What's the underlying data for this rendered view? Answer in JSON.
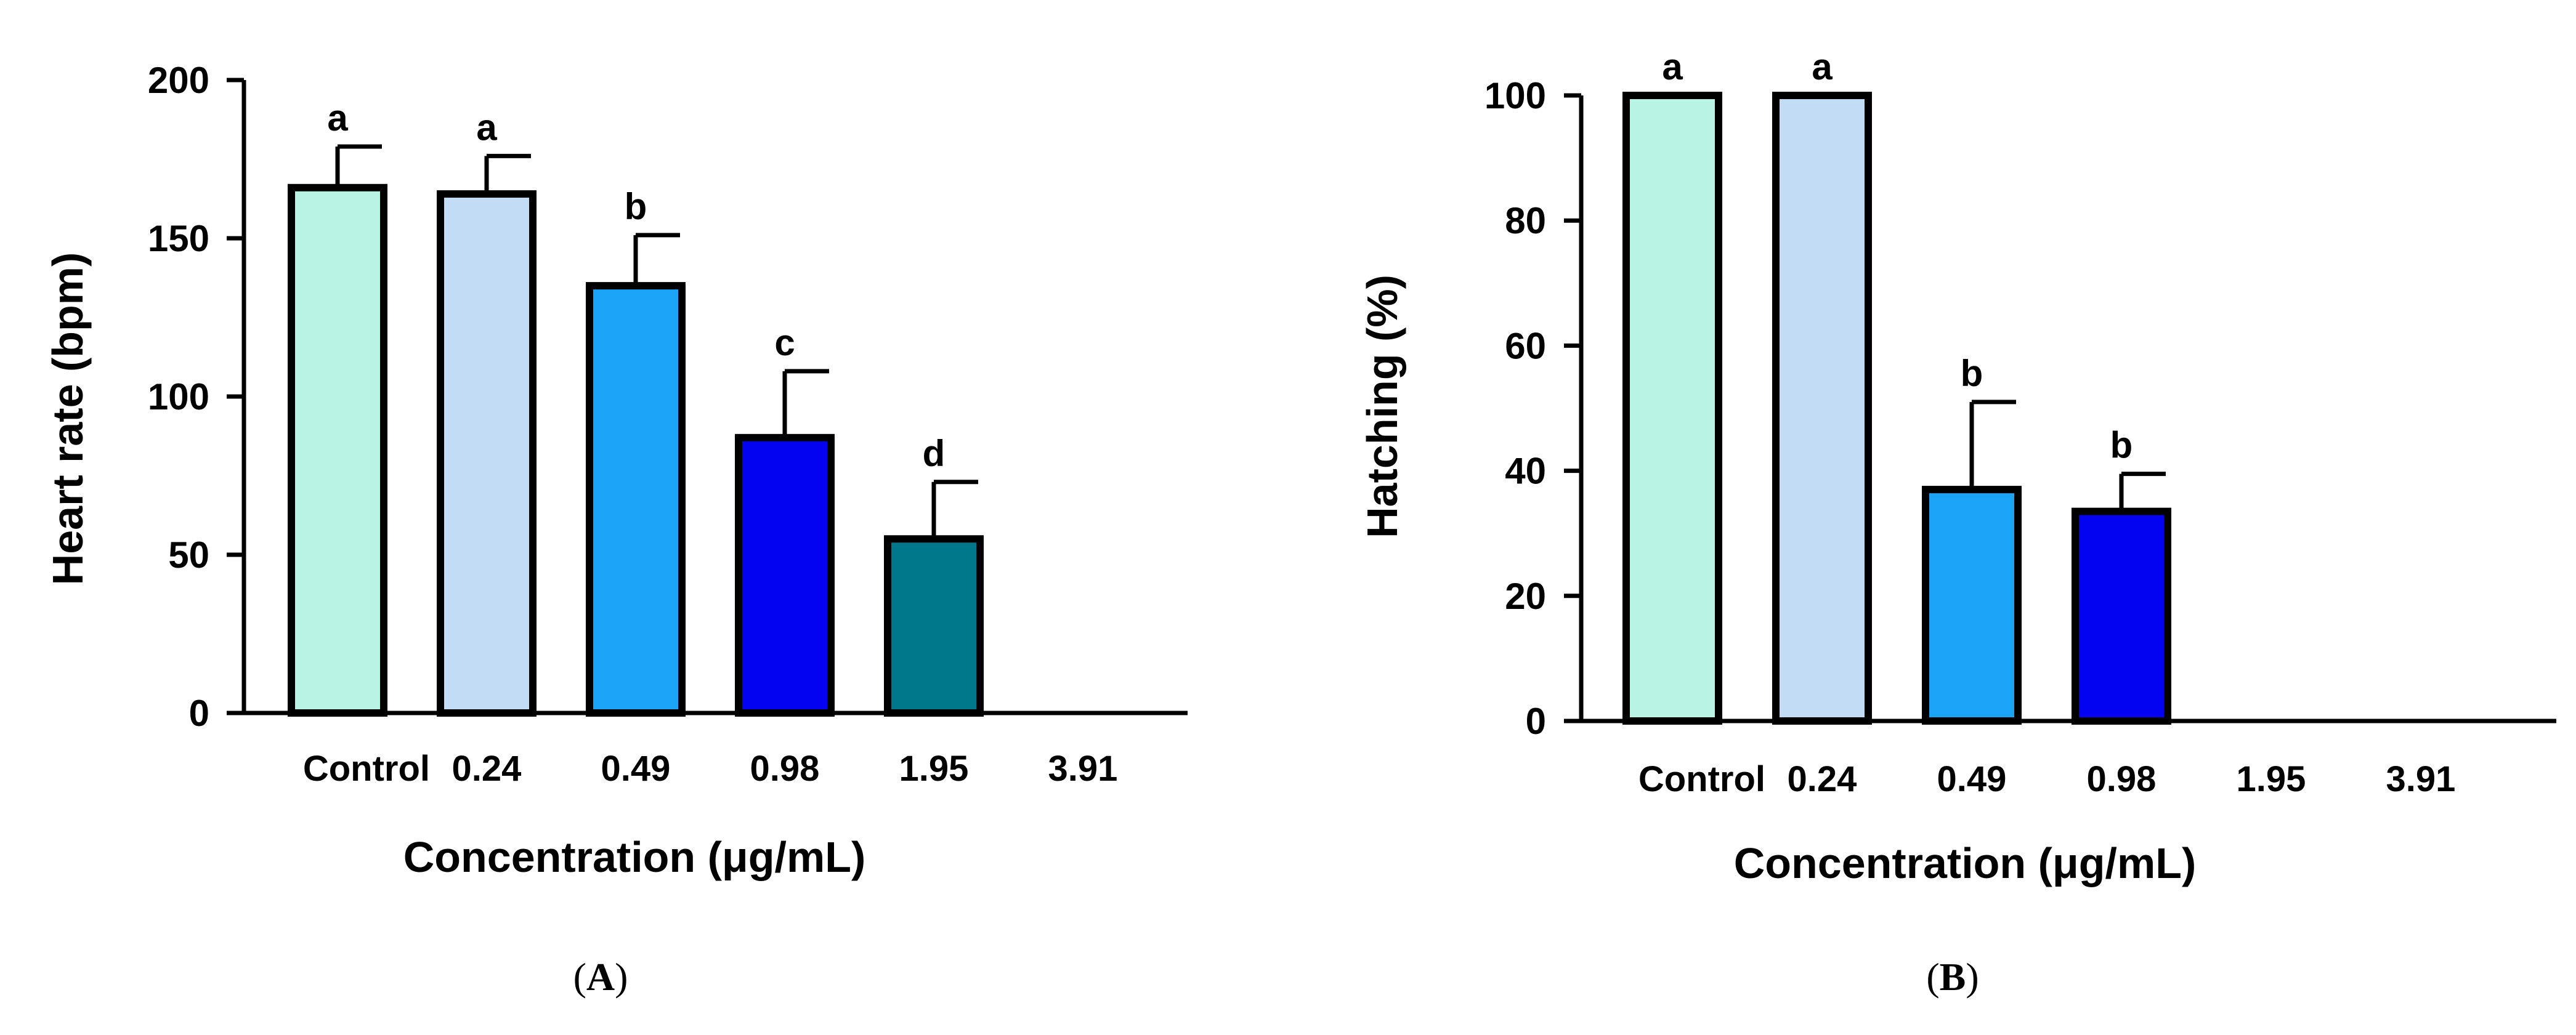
{
  "figure": {
    "colors": {
      "axis": "#000000",
      "bar_stroke": "#000000",
      "categories": [
        "#b9f3e4",
        "#c3dcf6",
        "#1aa3f7",
        "#0303f2",
        "#00788c",
        "#000000"
      ]
    }
  },
  "chart_data": [
    {
      "panel": "A",
      "panel_label": {
        "open": "(",
        "letter": "A",
        "close": ")"
      },
      "type": "bar",
      "title": "",
      "xlabel": "Concentration (μg/mL)",
      "ylabel": "Heart rate (bpm)",
      "categories": [
        "Control",
        "0.24",
        "0.49",
        "0.98",
        "1.95",
        "3.91"
      ],
      "values": [
        166,
        164,
        135,
        87,
        55,
        0
      ],
      "errors": [
        13,
        12,
        16,
        21,
        18,
        0
      ],
      "significance": [
        "a",
        "a",
        "b",
        "c",
        "d",
        ""
      ],
      "ylim": [
        0,
        200
      ],
      "yticks": [
        0,
        50,
        100,
        150,
        200
      ],
      "grid": false,
      "legend": "none"
    },
    {
      "panel": "B",
      "panel_label": {
        "open": "(",
        "letter": "B",
        "close": ")"
      },
      "type": "bar",
      "title": "",
      "xlabel": "Concentration (μg/mL)",
      "ylabel": "Hatching (%)",
      "categories": [
        "Control",
        "0.24",
        "0.49",
        "0.98",
        "1.95",
        "3.91"
      ],
      "values": [
        100,
        100,
        37,
        33.5,
        0,
        0
      ],
      "errors": [
        0,
        0,
        14,
        6,
        0,
        0
      ],
      "significance": [
        "a",
        "a",
        "b",
        "b",
        "",
        ""
      ],
      "ylim": [
        0,
        100
      ],
      "yticks": [
        0,
        20,
        40,
        60,
        80,
        100
      ],
      "grid": false,
      "legend": "none"
    }
  ]
}
